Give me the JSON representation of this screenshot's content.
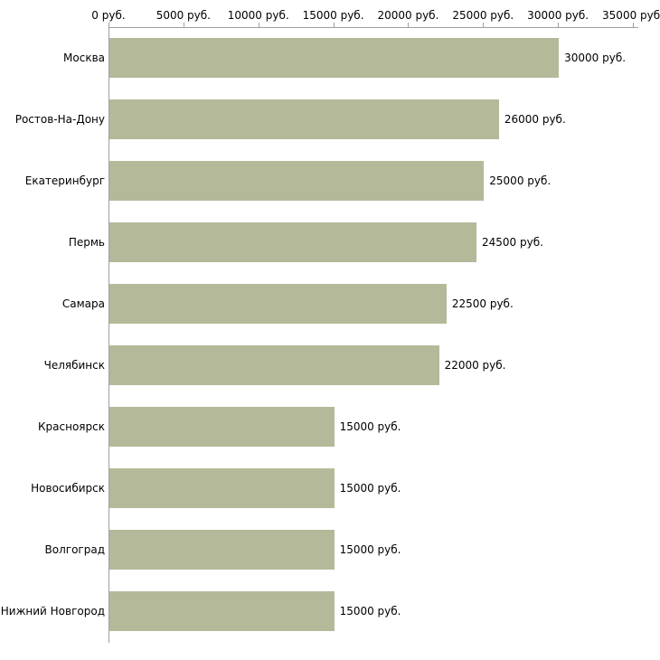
{
  "chart_data": {
    "type": "bar",
    "orientation": "horizontal",
    "title": "",
    "xlabel": "",
    "ylabel": "",
    "categories": [
      "Москва",
      "Ростов-На-Дону",
      "Екатеринбург",
      "Пермь",
      "Самара",
      "Челябинск",
      "Красноярск",
      "Новосибирск",
      "Волгоград",
      "Нижний Новгород"
    ],
    "values": [
      30000,
      26000,
      25000,
      24500,
      22500,
      22000,
      15000,
      15000,
      15000,
      15000
    ],
    "value_labels": [
      "30000 руб.",
      "26000 руб.",
      "25000 руб.",
      "24500 руб.",
      "22500 руб.",
      "22000 руб.",
      "15000 руб.",
      "15000 руб.",
      "15000 руб.",
      "15000 руб."
    ],
    "x_ticks": [
      0,
      5000,
      10000,
      15000,
      20000,
      25000,
      30000,
      35000
    ],
    "x_tick_labels": [
      "0 руб.",
      "5000 руб.",
      "10000 руб.",
      "15000 руб.",
      "20000 руб.",
      "25000 руб.",
      "30000 руб.",
      "35000 руб."
    ],
    "xlim": [
      0,
      35000
    ],
    "grid": false,
    "legend": "none",
    "bar_color": "#b4b99a",
    "axis_color": "#a0a0a0",
    "background_color": "#ffffff"
  }
}
